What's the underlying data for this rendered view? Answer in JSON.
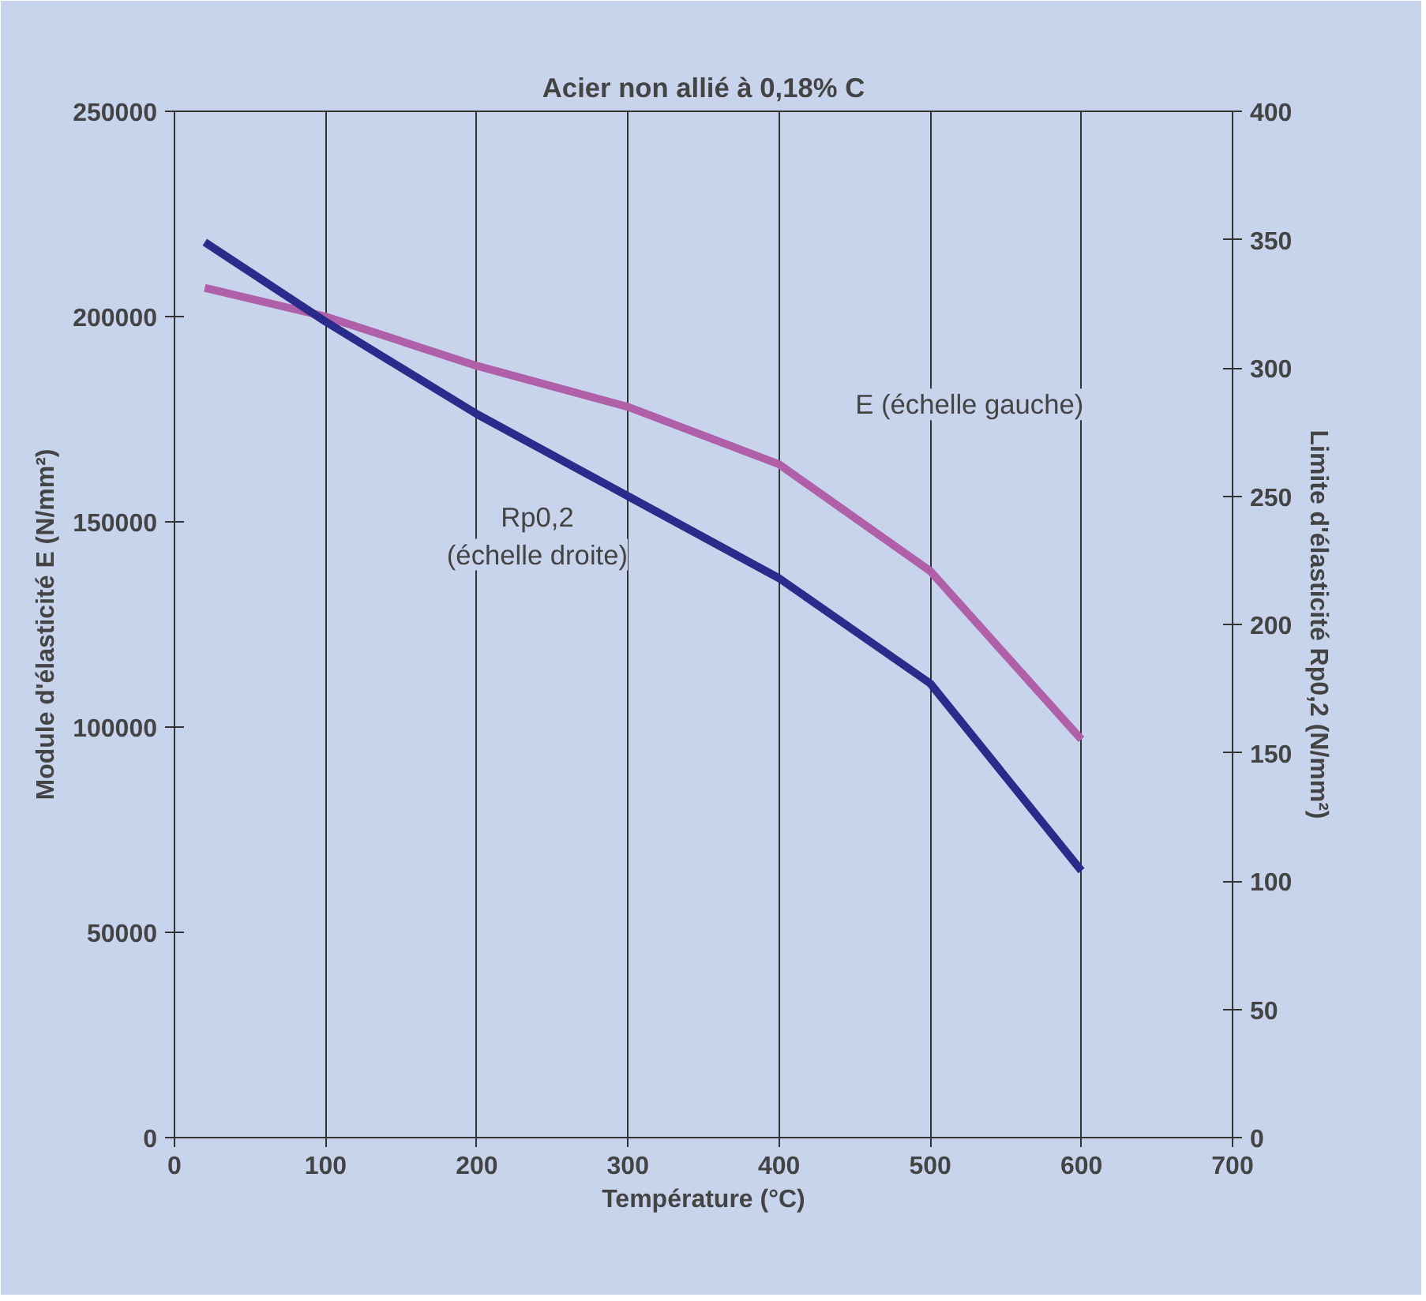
{
  "chart_data": {
    "type": "line",
    "title": "Acier non allié à 0,18% C",
    "xlabel": "Température (°C)",
    "ylabel": "Module d'élasticité E (N/mm²)",
    "y2label": "Limite d'élasticité Rp0,2 (N/mm²)",
    "x": [
      20,
      100,
      200,
      300,
      400,
      500,
      600
    ],
    "series": [
      {
        "name": "E (échelle gauche)",
        "color": "#b060a8",
        "values": [
          207000,
          200000,
          188000,
          178000,
          164000,
          138000,
          97000
        ]
      },
      {
        "name": "Rp0,2\n(échelle droite)",
        "color": "#2b2b8c",
        "axis": "y2",
        "values": [
          349,
          318,
          282,
          250,
          218,
          177,
          104
        ]
      }
    ],
    "xlim": [
      0,
      700
    ],
    "xticks": [
      0,
      100,
      200,
      300,
      400,
      500,
      600,
      700
    ],
    "ylim": [
      0,
      250000
    ],
    "yticks": [
      0,
      50000,
      100000,
      150000,
      200000,
      250000
    ],
    "y2lim": [
      0,
      400
    ],
    "y2ticks": [
      0,
      50,
      100,
      150,
      200,
      250,
      300,
      350,
      400
    ],
    "grid": "x",
    "legend": false,
    "line_style": "solid",
    "marker": "none"
  }
}
